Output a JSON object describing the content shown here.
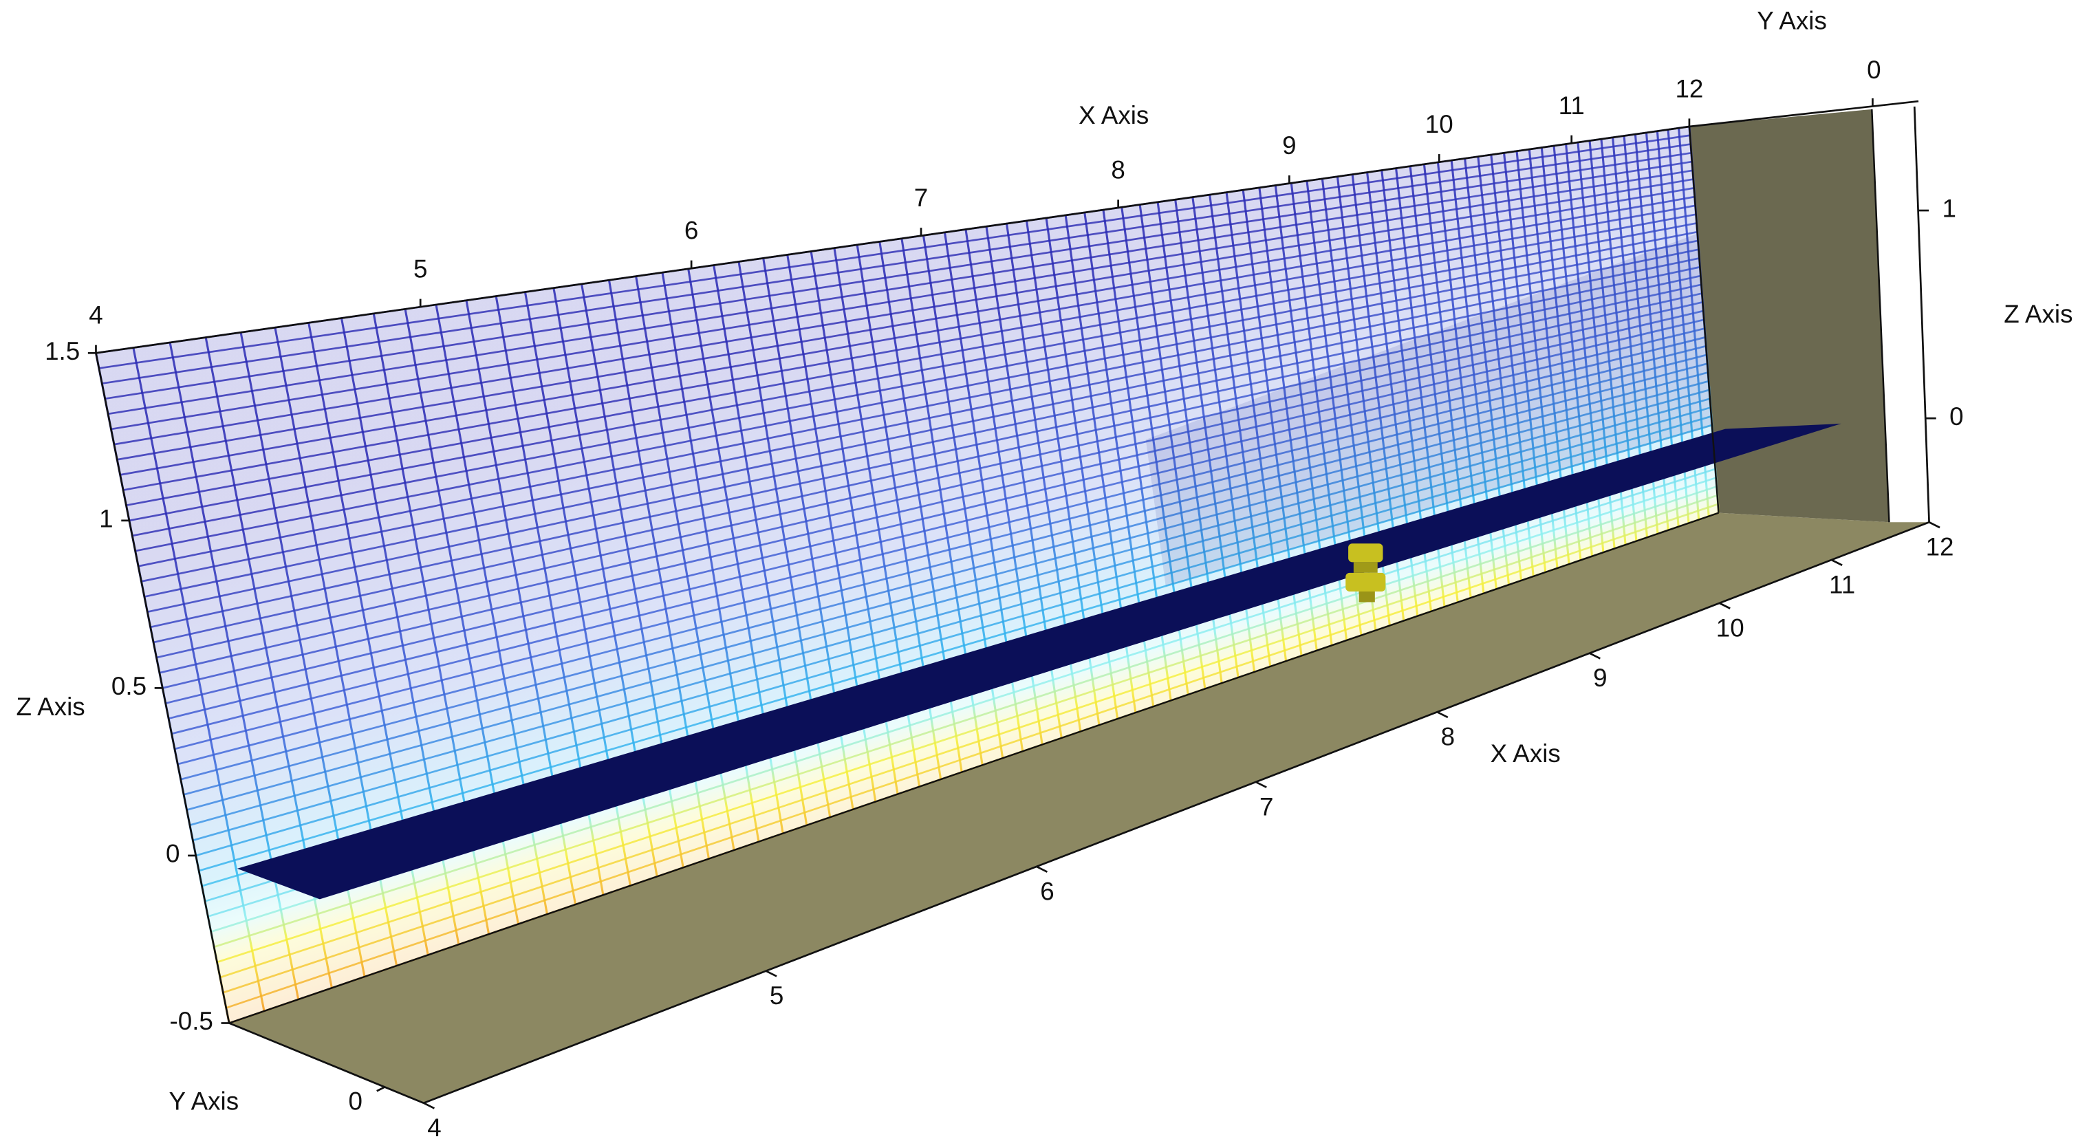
{
  "chart_data": {
    "type": "mesh3d",
    "axes": [
      {
        "label": "X Axis",
        "lim": [
          4,
          12
        ],
        "ticks": [
          4,
          5,
          6,
          7,
          8,
          9,
          10,
          11,
          12
        ]
      },
      {
        "label": "X Axis",
        "lim": [
          4,
          12
        ],
        "ticks": [
          4,
          5,
          6,
          7,
          8,
          9,
          10,
          11,
          12
        ]
      },
      {
        "label": "Y Axis",
        "lim": [
          -16,
          4
        ],
        "ticks": [
          0
        ]
      },
      {
        "label": "Y Axis",
        "lim": [
          -16,
          4
        ],
        "ticks": [
          0
        ]
      },
      {
        "label": "Z Axis",
        "lim": [
          -0.5,
          1.5
        ],
        "ticks": [
          -0.5,
          0,
          0.5,
          1,
          1.5
        ]
      },
      {
        "label": "Z Axis",
        "lim": [
          -0.5,
          1.5
        ],
        "ticks": [
          0,
          1
        ]
      }
    ]
  }
}
